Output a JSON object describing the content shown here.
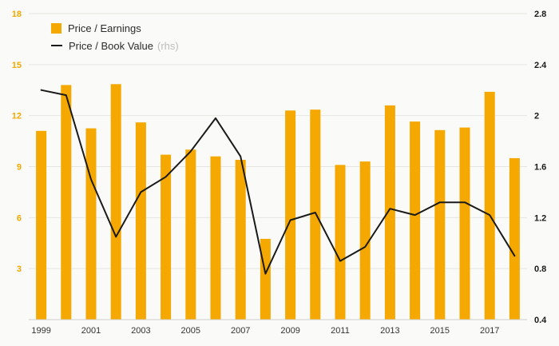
{
  "chart_data": {
    "type": "bar",
    "subtype": "bar-line-combo",
    "title": "",
    "categories": [
      "1999",
      "2000",
      "2001",
      "2002",
      "2003",
      "2004",
      "2005",
      "2006",
      "2007",
      "2008",
      "2009",
      "2010",
      "2011",
      "2012",
      "2013",
      "2014",
      "2015",
      "2016",
      "2017",
      "2018"
    ],
    "series": [
      {
        "name": "Price / Earnings",
        "type": "bar",
        "axis": "left",
        "values": [
          11.1,
          13.8,
          11.25,
          13.85,
          11.6,
          9.7,
          10.0,
          9.6,
          9.4,
          4.75,
          12.3,
          12.35,
          9.1,
          9.3,
          12.6,
          11.65,
          11.15,
          11.3,
          13.4,
          9.5
        ]
      },
      {
        "name": "Price / Book Value",
        "axis_note": "(rhs)",
        "type": "line",
        "axis": "right",
        "values": [
          2.2,
          2.16,
          1.5,
          1.05,
          1.4,
          1.52,
          1.72,
          1.98,
          1.68,
          0.76,
          1.18,
          1.24,
          0.86,
          0.97,
          1.27,
          1.22,
          1.32,
          1.32,
          1.22,
          0.9
        ]
      }
    ],
    "left_axis": {
      "min": 0,
      "max": 18,
      "ticks": [
        18,
        15,
        12,
        9,
        6,
        3
      ]
    },
    "right_axis": {
      "min": 0.4,
      "max": 2.8,
      "ticks": [
        2.8,
        2.4,
        2,
        1.6,
        1.2,
        0.8,
        0.4
      ]
    },
    "x_axis": {
      "visible_labels": [
        "1999",
        "2001",
        "2003",
        "2005",
        "2007",
        "2009",
        "2011",
        "2013",
        "2015",
        "2017"
      ],
      "label_every": 2
    },
    "grid": true,
    "legend_position": "top-left"
  },
  "legend": {
    "items": [
      {
        "label": "Price / Earnings",
        "marker": "bar-swatch"
      },
      {
        "label": "Price / Book Value",
        "suffix": "(rhs)",
        "marker": "line-swatch"
      }
    ]
  },
  "colors": {
    "bar": "#F5A800",
    "line": "#1A1A1A",
    "left_axis_label": "#F5A800",
    "right_axis_label": "#1A1A1A",
    "x_label": "#333333",
    "grid": "#E5E5E2",
    "axis_line": "#CFCFCC",
    "rhs_note": "#BDBDBD",
    "background": "#FAFAF8"
  }
}
